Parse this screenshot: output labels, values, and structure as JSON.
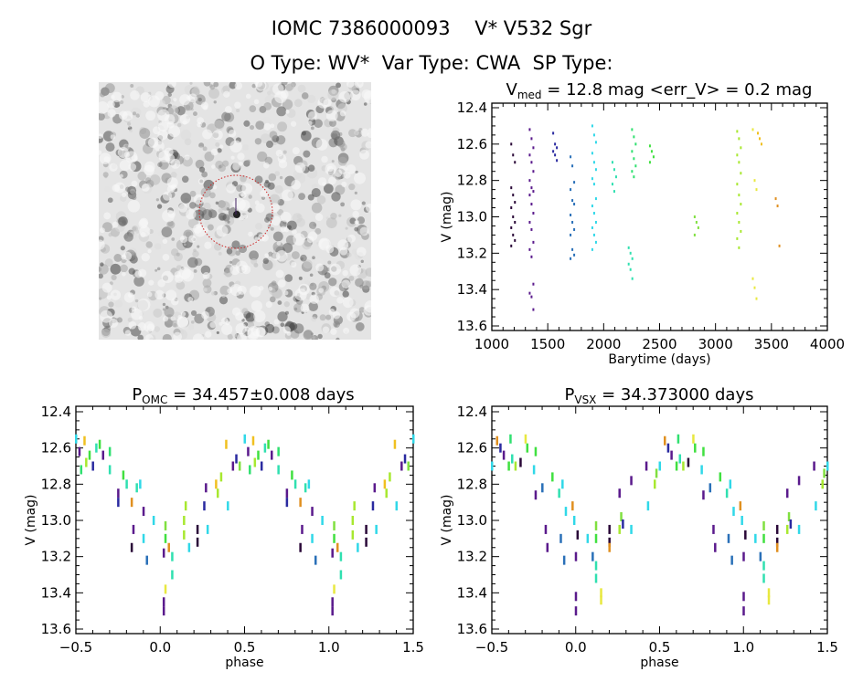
{
  "header": {
    "line1": "IOMC 7386000093    V* V532 Sgr",
    "line2": "O Type: WV*  Var Type: CWA  SP Type:"
  },
  "colors": {
    "c0": "#2a0838",
    "c1": "#5a1a8c",
    "c2": "#2a2aa0",
    "c3": "#2a70b8",
    "c4": "#30d8e8",
    "c5": "#30e0b0",
    "c6": "#30e070",
    "c7": "#40e040",
    "c8": "#80e040",
    "c9": "#a8e830",
    "c10": "#e8e840",
    "c11": "#f0c020",
    "c12": "#e09020",
    "target_circle": "#cc2222"
  },
  "image": {
    "type": "sky-cutout",
    "marker": "dotted red circle around target"
  },
  "chart_data": [
    {
      "type": "scatter",
      "title_main": "V",
      "title_sub": "med",
      "title_rest": " = 12.8 mag <err_V> = 0.2 mag",
      "xlabel": "Barytime (days)",
      "ylabel": "V (mag)",
      "xlim": [
        1000,
        4000
      ],
      "ylim": [
        13.6,
        12.4
      ],
      "y_inverted": true,
      "xticks": [
        "1000",
        "1500",
        "2000",
        "2500",
        "3000",
        "3500",
        "4000"
      ],
      "yticks": [
        "12.4",
        "12.6",
        "12.8",
        "13.0",
        "13.2",
        "13.4",
        "13.6"
      ],
      "seasons": [
        {
          "t": 1190,
          "c": "c0",
          "mags": [
            12.6,
            12.66,
            12.7,
            12.84,
            12.88,
            12.92,
            12.95,
            13.0,
            13.03,
            13.06,
            13.1,
            13.13,
            13.16
          ]
        },
        {
          "t": 1355,
          "c": "c1",
          "mags": [
            12.52,
            12.57,
            12.62,
            12.66,
            12.7,
            12.75,
            12.8,
            12.84,
            12.86,
            12.88,
            12.93,
            12.98,
            13.03,
            13.07,
            13.14,
            13.18,
            13.22,
            13.37,
            13.42,
            13.44,
            13.51
          ]
        },
        {
          "t": 1565,
          "c": "c2",
          "mags": [
            12.54,
            12.6,
            12.62,
            12.64,
            12.66,
            12.69
          ]
        },
        {
          "t": 1720,
          "c": "c3",
          "mags": [
            12.67,
            12.72,
            12.81,
            12.85,
            12.91,
            12.93,
            12.99,
            13.03,
            13.07,
            13.1,
            13.18,
            13.21,
            13.23
          ]
        },
        {
          "t": 1915,
          "c": "c4",
          "mags": [
            12.5,
            12.55,
            12.59,
            12.65,
            12.7,
            12.74,
            12.79,
            12.82,
            12.9,
            12.94,
            12.98,
            13.03,
            13.06,
            13.1,
            13.14,
            13.18
          ]
        },
        {
          "t": 2095,
          "c": "c5",
          "mags": [
            12.7,
            12.74,
            12.78,
            12.82,
            12.86
          ]
        },
        {
          "t": 2240,
          "c": "c5",
          "mags": [
            13.17,
            13.2,
            13.23,
            13.26,
            13.29,
            13.34
          ]
        },
        {
          "t": 2270,
          "c": "c6",
          "mags": [
            12.52,
            12.56,
            12.6,
            12.64,
            12.68,
            12.72,
            12.75,
            12.78
          ]
        },
        {
          "t": 2430,
          "c": "c7",
          "mags": [
            12.61,
            12.64,
            12.67,
            12.7
          ]
        },
        {
          "t": 2830,
          "c": "c8",
          "mags": [
            13.0,
            13.03,
            13.06,
            13.1
          ]
        },
        {
          "t": 3210,
          "c": "c9",
          "mags": [
            12.53,
            12.57,
            12.62,
            12.66,
            12.7,
            12.76,
            12.82,
            12.88,
            12.93,
            12.98,
            13.03,
            13.08,
            13.12,
            13.17
          ]
        },
        {
          "t": 3350,
          "c": "c10",
          "mags": [
            12.52,
            12.8,
            12.85,
            13.34,
            13.39,
            13.45
          ]
        },
        {
          "t": 3395,
          "c": "c11",
          "mags": [
            12.54,
            12.57,
            12.6
          ]
        },
        {
          "t": 3555,
          "c": "c12",
          "mags": [
            12.9,
            12.94,
            13.16
          ]
        }
      ]
    },
    {
      "type": "scatter",
      "title_main": "P",
      "title_sub": "OMC",
      "title_rest": " = 34.457±0.008 days",
      "xlabel": "phase",
      "ylabel": "V (mag)",
      "xlim": [
        -0.5,
        1.5
      ],
      "ylim": [
        13.6,
        12.4
      ],
      "y_inverted": true,
      "xticks": [
        "-0.5",
        "0.0",
        "0.5",
        "1.0",
        "1.5"
      ],
      "yticks": [
        "12.4",
        "12.6",
        "12.8",
        "13.0",
        "13.2",
        "13.4",
        "13.6"
      ],
      "points": [
        [
          0.02,
          13.45,
          "c1"
        ],
        [
          0.02,
          13.5,
          "c1"
        ],
        [
          0.03,
          13.38,
          "c10"
        ],
        [
          0.03,
          13.1,
          "c7"
        ],
        [
          0.03,
          13.03,
          "c8"
        ],
        [
          0.02,
          13.18,
          "c1"
        ],
        [
          0.05,
          13.15,
          "c12"
        ],
        [
          0.07,
          13.2,
          "c5"
        ],
        [
          0.07,
          13.3,
          "c5"
        ],
        [
          0.14,
          13.0,
          "c9"
        ],
        [
          0.14,
          13.08,
          "c9"
        ],
        [
          0.15,
          12.92,
          "c9"
        ],
        [
          0.17,
          13.15,
          "c4"
        ],
        [
          0.22,
          13.05,
          "c0"
        ],
        [
          0.22,
          13.12,
          "c0"
        ],
        [
          0.26,
          12.92,
          "c2"
        ],
        [
          0.27,
          12.82,
          "c1"
        ],
        [
          0.28,
          13.05,
          "c4"
        ],
        [
          0.33,
          12.8,
          "c11"
        ],
        [
          0.34,
          12.85,
          "c9"
        ],
        [
          0.36,
          12.76,
          "c9"
        ],
        [
          0.39,
          12.58,
          "c11"
        ],
        [
          0.4,
          12.92,
          "c4"
        ],
        [
          0.43,
          12.7,
          "c1"
        ],
        [
          0.45,
          12.66,
          "c2"
        ],
        [
          0.47,
          12.7,
          "c8"
        ],
        [
          0.5,
          12.55,
          "c4"
        ],
        [
          0.52,
          12.62,
          "c1"
        ],
        [
          0.53,
          12.72,
          "c6"
        ],
        [
          0.55,
          12.56,
          "c11"
        ],
        [
          0.56,
          12.68,
          "c9"
        ],
        [
          0.58,
          12.64,
          "c7"
        ],
        [
          0.6,
          12.7,
          "c2"
        ],
        [
          0.62,
          12.6,
          "c5"
        ],
        [
          0.64,
          12.58,
          "c7"
        ],
        [
          0.66,
          12.64,
          "c1"
        ],
        [
          0.7,
          12.62,
          "c6"
        ],
        [
          0.7,
          12.72,
          "c5"
        ],
        [
          0.75,
          12.85,
          "c1"
        ],
        [
          0.75,
          12.9,
          "c2"
        ],
        [
          0.78,
          12.75,
          "c7"
        ],
        [
          0.8,
          12.8,
          "c5"
        ],
        [
          0.83,
          12.9,
          "c12"
        ],
        [
          0.84,
          13.05,
          "c1"
        ],
        [
          0.83,
          13.15,
          "c0"
        ],
        [
          0.86,
          12.82,
          "c5"
        ],
        [
          0.88,
          12.8,
          "c4"
        ],
        [
          0.9,
          13.1,
          "c4"
        ],
        [
          0.9,
          12.95,
          "c1"
        ],
        [
          0.92,
          13.22,
          "c3"
        ],
        [
          0.96,
          13.0,
          "c4"
        ]
      ]
    },
    {
      "type": "scatter",
      "title_main": "P",
      "title_sub": "VSX",
      "title_rest": " = 34.373000 days",
      "xlabel": "phase",
      "ylabel": "V (mag)",
      "xlim": [
        -0.5,
        1.5
      ],
      "ylim": [
        13.6,
        12.4
      ],
      "y_inverted": true,
      "xticks": [
        "-0.5",
        "0.0",
        "0.5",
        "1.0",
        "1.5"
      ],
      "yticks": [
        "12.4",
        "12.6",
        "12.8",
        "13.0",
        "13.2",
        "13.4",
        "13.6"
      ],
      "points": [
        [
          0.0,
          13.5,
          "c1"
        ],
        [
          0.0,
          13.42,
          "c1"
        ],
        [
          0.0,
          13.2,
          "c1"
        ],
        [
          0.01,
          13.08,
          "c0"
        ],
        [
          0.07,
          13.1,
          "c4"
        ],
        [
          0.1,
          13.2,
          "c3"
        ],
        [
          0.12,
          13.1,
          "c7"
        ],
        [
          0.12,
          13.03,
          "c8"
        ],
        [
          0.12,
          13.25,
          "c5"
        ],
        [
          0.12,
          13.32,
          "c5"
        ],
        [
          0.15,
          13.4,
          "c10"
        ],
        [
          0.15,
          13.44,
          "c10"
        ],
        [
          0.2,
          13.05,
          "c0"
        ],
        [
          0.2,
          13.12,
          "c0"
        ],
        [
          0.2,
          13.15,
          "c12"
        ],
        [
          0.26,
          13.05,
          "c9"
        ],
        [
          0.27,
          12.98,
          "c8"
        ],
        [
          0.28,
          13.02,
          "c2"
        ],
        [
          0.26,
          12.85,
          "c1"
        ],
        [
          0.33,
          12.78,
          "c1"
        ],
        [
          0.33,
          13.05,
          "c4"
        ],
        [
          0.42,
          12.7,
          "c1"
        ],
        [
          0.43,
          12.92,
          "c4"
        ],
        [
          0.47,
          12.8,
          "c9"
        ],
        [
          0.48,
          12.74,
          "c8"
        ],
        [
          0.5,
          12.7,
          "c4"
        ],
        [
          0.53,
          12.56,
          "c12"
        ],
        [
          0.55,
          12.6,
          "c2"
        ],
        [
          0.57,
          12.64,
          "c1"
        ],
        [
          0.6,
          12.7,
          "c7"
        ],
        [
          0.61,
          12.55,
          "c6"
        ],
        [
          0.62,
          12.66,
          "c5"
        ],
        [
          0.64,
          12.7,
          "c9"
        ],
        [
          0.67,
          12.68,
          "c0"
        ],
        [
          0.7,
          12.55,
          "c10"
        ],
        [
          0.71,
          12.6,
          "c7"
        ],
        [
          0.76,
          12.62,
          "c7"
        ],
        [
          0.75,
          12.72,
          "c4"
        ],
        [
          0.76,
          12.86,
          "c1"
        ],
        [
          0.8,
          12.82,
          "c3"
        ],
        [
          0.82,
          13.05,
          "c1"
        ],
        [
          0.83,
          13.15,
          "c1"
        ],
        [
          0.86,
          12.76,
          "c7"
        ],
        [
          0.9,
          12.85,
          "c5"
        ],
        [
          0.91,
          13.1,
          "c3"
        ],
        [
          0.92,
          12.8,
          "c4"
        ],
        [
          0.93,
          13.22,
          "c3"
        ],
        [
          0.94,
          12.95,
          "c4"
        ],
        [
          0.98,
          12.92,
          "c12"
        ],
        [
          0.99,
          13.0,
          "c4"
        ]
      ]
    }
  ]
}
